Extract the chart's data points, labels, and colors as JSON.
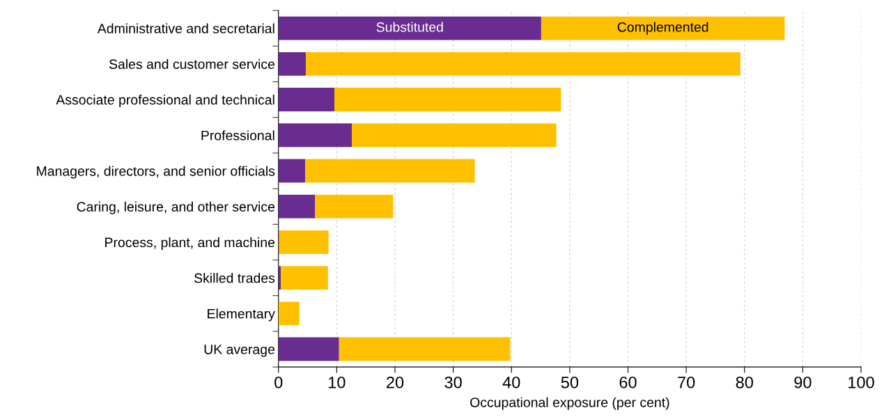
{
  "chart_data": {
    "type": "bar",
    "orientation": "horizontal",
    "stacked": true,
    "xlabel": "Occupational exposure (per cent)",
    "categories": [
      "Administrative and secretarial",
      "Sales and customer service",
      "Associate professional and technical",
      "Professional",
      "Managers, directors, and senior officials",
      "Caring, leisure, and other service",
      "Process, plant, and machine",
      "Skilled trades",
      "Elementary",
      "UK average"
    ],
    "series": [
      {
        "name": "Substituted",
        "color": "#692c91",
        "values": [
          45.1,
          4.7,
          9.6,
          12.6,
          4.6,
          6.3,
          0.1,
          0.4,
          0,
          10.4
        ]
      },
      {
        "name": "Complemented",
        "color": "#ffc000",
        "values": [
          41.8,
          74.6,
          38.9,
          35.1,
          29.1,
          13.4,
          8.5,
          8.1,
          3.6,
          29.4
        ]
      }
    ],
    "xlim": [
      0,
      100
    ],
    "xticks": [
      0,
      10,
      20,
      30,
      40,
      50,
      60,
      70,
      80,
      90,
      100
    ],
    "grid": "x",
    "legend": false
  }
}
